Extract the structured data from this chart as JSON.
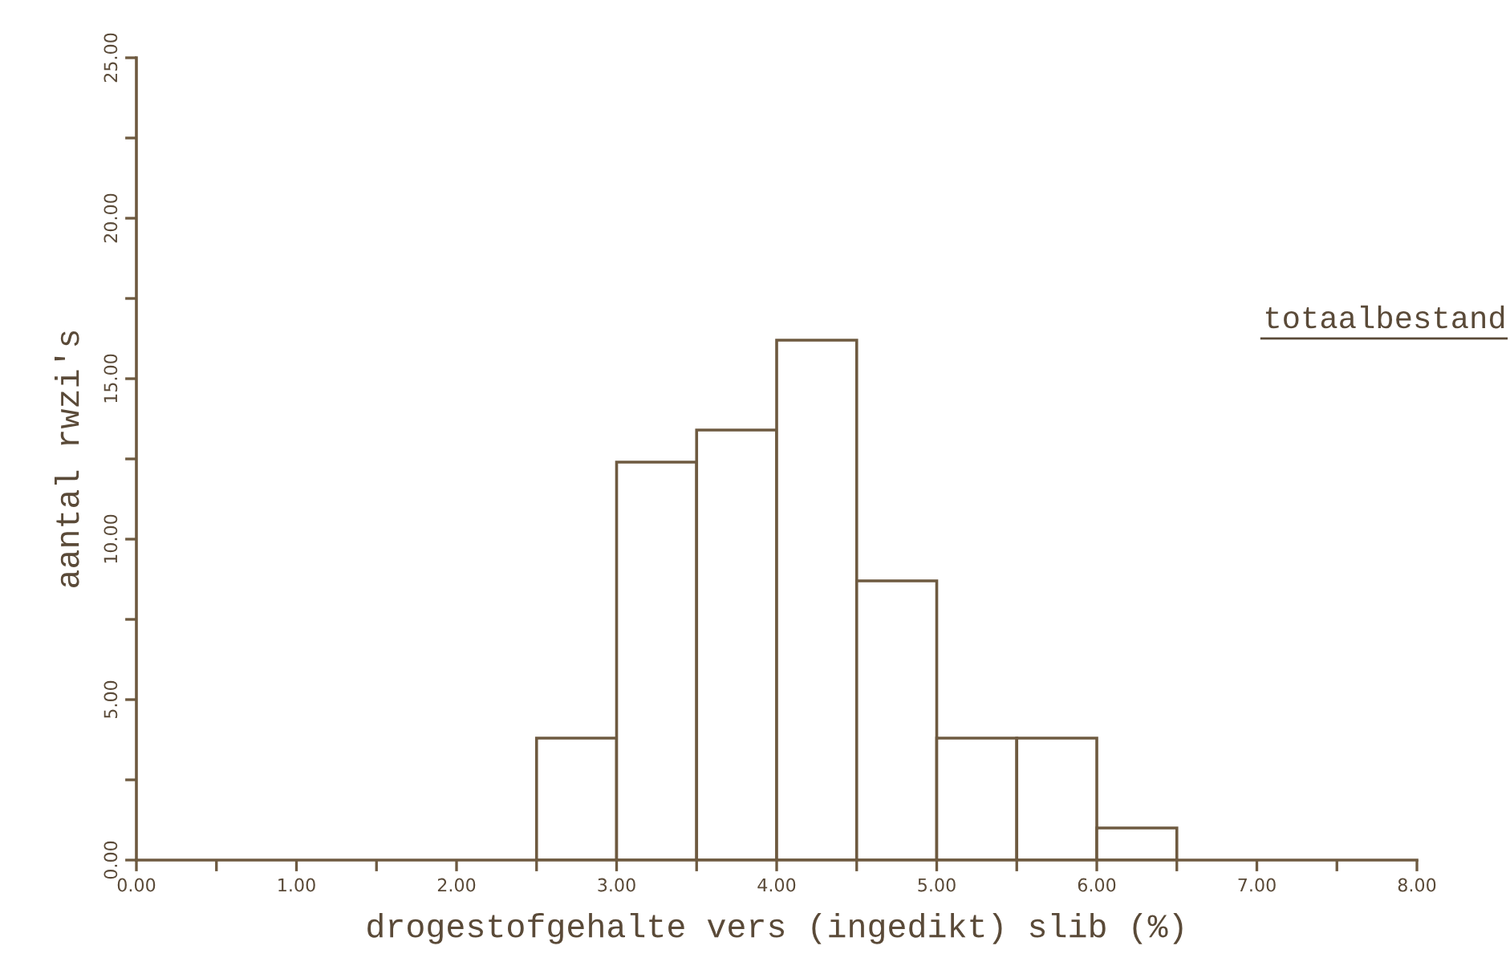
{
  "chart_data": {
    "type": "histogram",
    "xlabel": "drogestofgehalte vers (ingedikt) slib (%)",
    "ylabel": "aantal rwzi's",
    "annotations": [
      "totaalbestand"
    ],
    "bins": [
      2.5,
      3.0,
      3.5,
      4.0,
      4.5,
      5.0,
      5.5,
      6.0,
      6.5
    ],
    "values": [
      3.8,
      12.4,
      13.4,
      16.2,
      8.7,
      3.8,
      3.8,
      1.0
    ],
    "color": "#6e5a40",
    "xlim": [
      0,
      8
    ],
    "xticks": [
      {
        "value": 0,
        "label": "0.00"
      },
      {
        "value": 0.5,
        "label": null
      },
      {
        "value": 1,
        "label": "1.00"
      },
      {
        "value": 1.5,
        "label": null
      },
      {
        "value": 2,
        "label": "2.00"
      },
      {
        "value": 2.5,
        "label": null
      },
      {
        "value": 3,
        "label": "3.00"
      },
      {
        "value": 3.5,
        "label": null
      },
      {
        "value": 4,
        "label": "4.00"
      },
      {
        "value": 4.5,
        "label": null
      },
      {
        "value": 5,
        "label": "5.00"
      },
      {
        "value": 5.5,
        "label": null
      },
      {
        "value": 6,
        "label": "6.00"
      },
      {
        "value": 6.5,
        "label": null
      },
      {
        "value": 7,
        "label": "7.00"
      },
      {
        "value": 7.5,
        "label": null
      },
      {
        "value": 8,
        "label": "8.00"
      }
    ],
    "ylim": [
      0,
      25
    ],
    "yticks": [
      {
        "value": 0,
        "label": "0.00"
      },
      {
        "value": 2.5,
        "label": null
      },
      {
        "value": 5,
        "label": "5.00"
      },
      {
        "value": 7.5,
        "label": null
      },
      {
        "value": 10,
        "label": "10.00"
      },
      {
        "value": 12.5,
        "label": null
      },
      {
        "value": 15,
        "label": "15.00"
      },
      {
        "value": 17.5,
        "label": null
      },
      {
        "value": 20,
        "label": "20.00"
      },
      {
        "value": 22.5,
        "label": null
      },
      {
        "value": 25,
        "label": "25.00"
      }
    ],
    "grid": false
  }
}
